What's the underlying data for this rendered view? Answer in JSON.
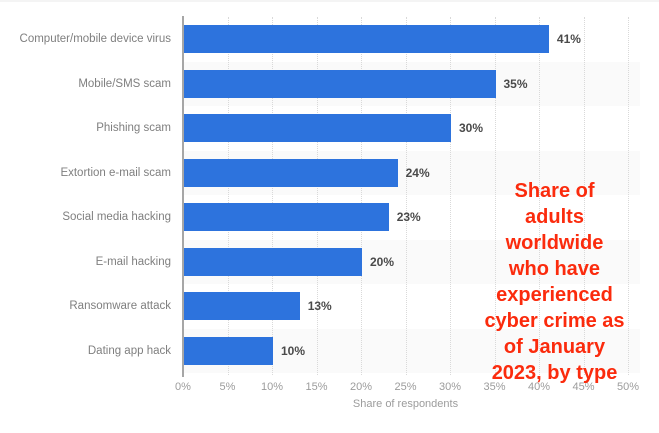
{
  "chart_data": {
    "type": "bar",
    "orientation": "horizontal",
    "categories": [
      "Computer/mobile device virus",
      "Mobile/SMS scam",
      "Phishing scam",
      "Extortion e-mail scam",
      "Social media hacking",
      "E-mail hacking",
      "Ransomware attack",
      "Dating app hack"
    ],
    "values": [
      41,
      35,
      30,
      24,
      23,
      20,
      13,
      10
    ],
    "value_labels": [
      "41%",
      "35%",
      "30%",
      "24%",
      "23%",
      "20%",
      "13%",
      "10%"
    ],
    "xlabel": "Share of respondents",
    "x_ticks": [
      "0%",
      "5%",
      "10%",
      "15%",
      "20%",
      "25%",
      "30%",
      "35%",
      "40%",
      "45%",
      "50%"
    ],
    "xlim": [
      0,
      50
    ],
    "grid": "vertical-dotted",
    "legend": "none",
    "bar_color": "#2d73dd",
    "stripe_color": "#fafafa",
    "annotation": {
      "text": "Share of adults worldwide who have experienced cyber crime as of January 2023, by type",
      "lines": [
        "Share of",
        "adults",
        "worldwide",
        "who have",
        "experienced",
        "cyber crime as",
        "of January",
        "2023, by type"
      ],
      "color": "#fb2b0d"
    }
  }
}
